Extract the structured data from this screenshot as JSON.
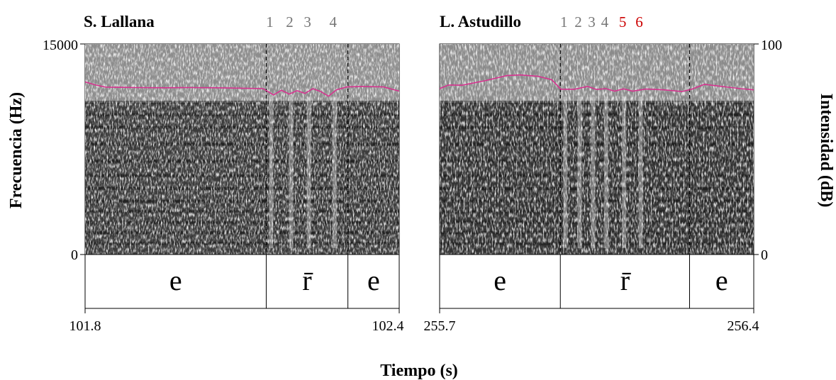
{
  "figure": {
    "y_left_label": "Frecuencia (Hz)",
    "y_right_label": "Intensidad (dB)",
    "x_label": "Tiempo (s)"
  },
  "chart_data": [
    {
      "type": "heatmap",
      "title": "S. Lallana",
      "xlim": [
        101.8,
        102.4
      ],
      "ylim": [
        0,
        15000
      ],
      "x_ticks": [
        "101.8",
        "102.4"
      ],
      "y_ticks": [
        "15000",
        "0"
      ],
      "ylabel": "Frecuencia (Hz)",
      "xlabel": "Tiempo (s)",
      "boundaries": [
        102.146,
        102.302
      ],
      "segments": [
        {
          "label": "e",
          "start": 101.8,
          "end": 102.146
        },
        {
          "label": "r̄",
          "start": 102.146,
          "end": 102.302
        },
        {
          "label": "e",
          "start": 102.302,
          "end": 102.4
        }
      ],
      "occlusion_markers": [
        {
          "label": "1",
          "t": 102.146,
          "color": "#777777"
        },
        {
          "label": "2",
          "t": 102.184,
          "color": "#777777"
        },
        {
          "label": "3",
          "t": 102.218,
          "color": "#777777"
        },
        {
          "label": "4",
          "t": 102.267,
          "color": "#777777"
        }
      ],
      "intensity_series": {
        "name": "intensity",
        "color": "#d6338f",
        "ylim": [
          0,
          100
        ],
        "t": [
          101.8,
          101.82,
          101.84,
          101.87,
          101.9,
          101.95,
          102.0,
          102.05,
          102.1,
          102.14,
          102.16,
          102.175,
          102.19,
          102.205,
          102.22,
          102.235,
          102.25,
          102.265,
          102.28,
          102.3,
          102.33,
          102.37,
          102.4
        ],
        "db": [
          82,
          80.5,
          79.5,
          79.4,
          79.3,
          79.2,
          79.3,
          79.2,
          79.0,
          78.8,
          75.8,
          78.0,
          76.2,
          77.8,
          76.5,
          78.8,
          77.4,
          75.2,
          78.2,
          79.6,
          79.8,
          79.6,
          77.6
        ]
      },
      "spectrum_shade": "#3b3b3b"
    },
    {
      "type": "heatmap",
      "title": "L. Astudillo",
      "xlim": [
        255.7,
        256.4
      ],
      "ylim": [
        0,
        100
      ],
      "x_ticks": [
        "255.7",
        "256.4"
      ],
      "y_ticks": [
        "100",
        "0"
      ],
      "ylabel": "Intensidad (dB)",
      "xlabel": "Tiempo (s)",
      "boundaries": [
        255.969,
        256.257
      ],
      "segments": [
        {
          "label": "e",
          "start": 255.7,
          "end": 255.969
        },
        {
          "label": "r̄",
          "start": 255.969,
          "end": 256.257
        },
        {
          "label": "e",
          "start": 256.257,
          "end": 256.4
        }
      ],
      "occlusion_markers": [
        {
          "label": "1",
          "t": 255.969,
          "color": "#777777"
        },
        {
          "label": "2",
          "t": 256.001,
          "color": "#777777"
        },
        {
          "label": "3",
          "t": 256.031,
          "color": "#777777"
        },
        {
          "label": "4",
          "t": 256.06,
          "color": "#777777"
        },
        {
          "label": "5",
          "t": 256.1,
          "color": "#cc0000"
        },
        {
          "label": "6",
          "t": 256.137,
          "color": "#cc0000"
        }
      ],
      "intensity_series": {
        "name": "intensity",
        "color": "#d6338f",
        "ylim": [
          0,
          100
        ],
        "t": [
          255.7,
          255.72,
          255.75,
          255.8,
          255.85,
          255.88,
          255.92,
          255.95,
          255.97,
          256.0,
          256.03,
          256.05,
          256.07,
          256.09,
          256.11,
          256.13,
          256.16,
          256.2,
          256.24,
          256.26,
          256.29,
          256.33,
          256.37,
          256.4
        ],
        "db": [
          78.8,
          80.5,
          80.4,
          82.5,
          85.0,
          85.3,
          84.6,
          83.0,
          78.5,
          78.5,
          79.8,
          78.4,
          78.8,
          77.6,
          78.7,
          77.6,
          78.6,
          78.2,
          77.4,
          78.4,
          80.8,
          79.8,
          78.8,
          78.2
        ]
      },
      "spectrum_shade": "#333333"
    }
  ]
}
